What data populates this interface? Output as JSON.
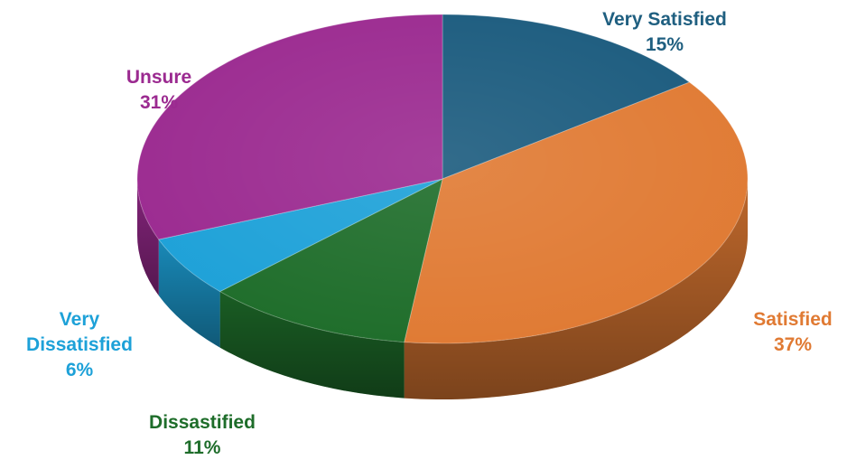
{
  "chart_data": {
    "type": "pie",
    "title": "",
    "start_angle_deg": -90,
    "slices": [
      {
        "name": "Very Satisfied",
        "value": 15,
        "label_lines": [
          "Very Satisfied"
        ],
        "pct_label": "15%",
        "color": "#1b5b7e",
        "label_color": "#1f5f80"
      },
      {
        "name": "Satisfied",
        "value": 37,
        "label_lines": [
          "Satisfied"
        ],
        "pct_label": "37%",
        "color": "#e07a33",
        "label_color": "#e07a33"
      },
      {
        "name": "Dissastified",
        "value": 11,
        "label_lines": [
          "Dissastified"
        ],
        "pct_label": "11%",
        "color": "#1e6d2a",
        "label_color": "#1e6d2a"
      },
      {
        "name": "Very Dissatisfied",
        "value": 6,
        "label_lines": [
          "Very",
          "Dissatisfied"
        ],
        "pct_label": "6%",
        "color": "#1da1d8",
        "label_color": "#1da1d8"
      },
      {
        "name": "Unsure",
        "value": 31,
        "label_lines": [
          "Unsure"
        ],
        "pct_label": "31%",
        "color": "#9b2a90",
        "label_color": "#9b2a90"
      }
    ],
    "legend": "none",
    "style": "3d"
  }
}
